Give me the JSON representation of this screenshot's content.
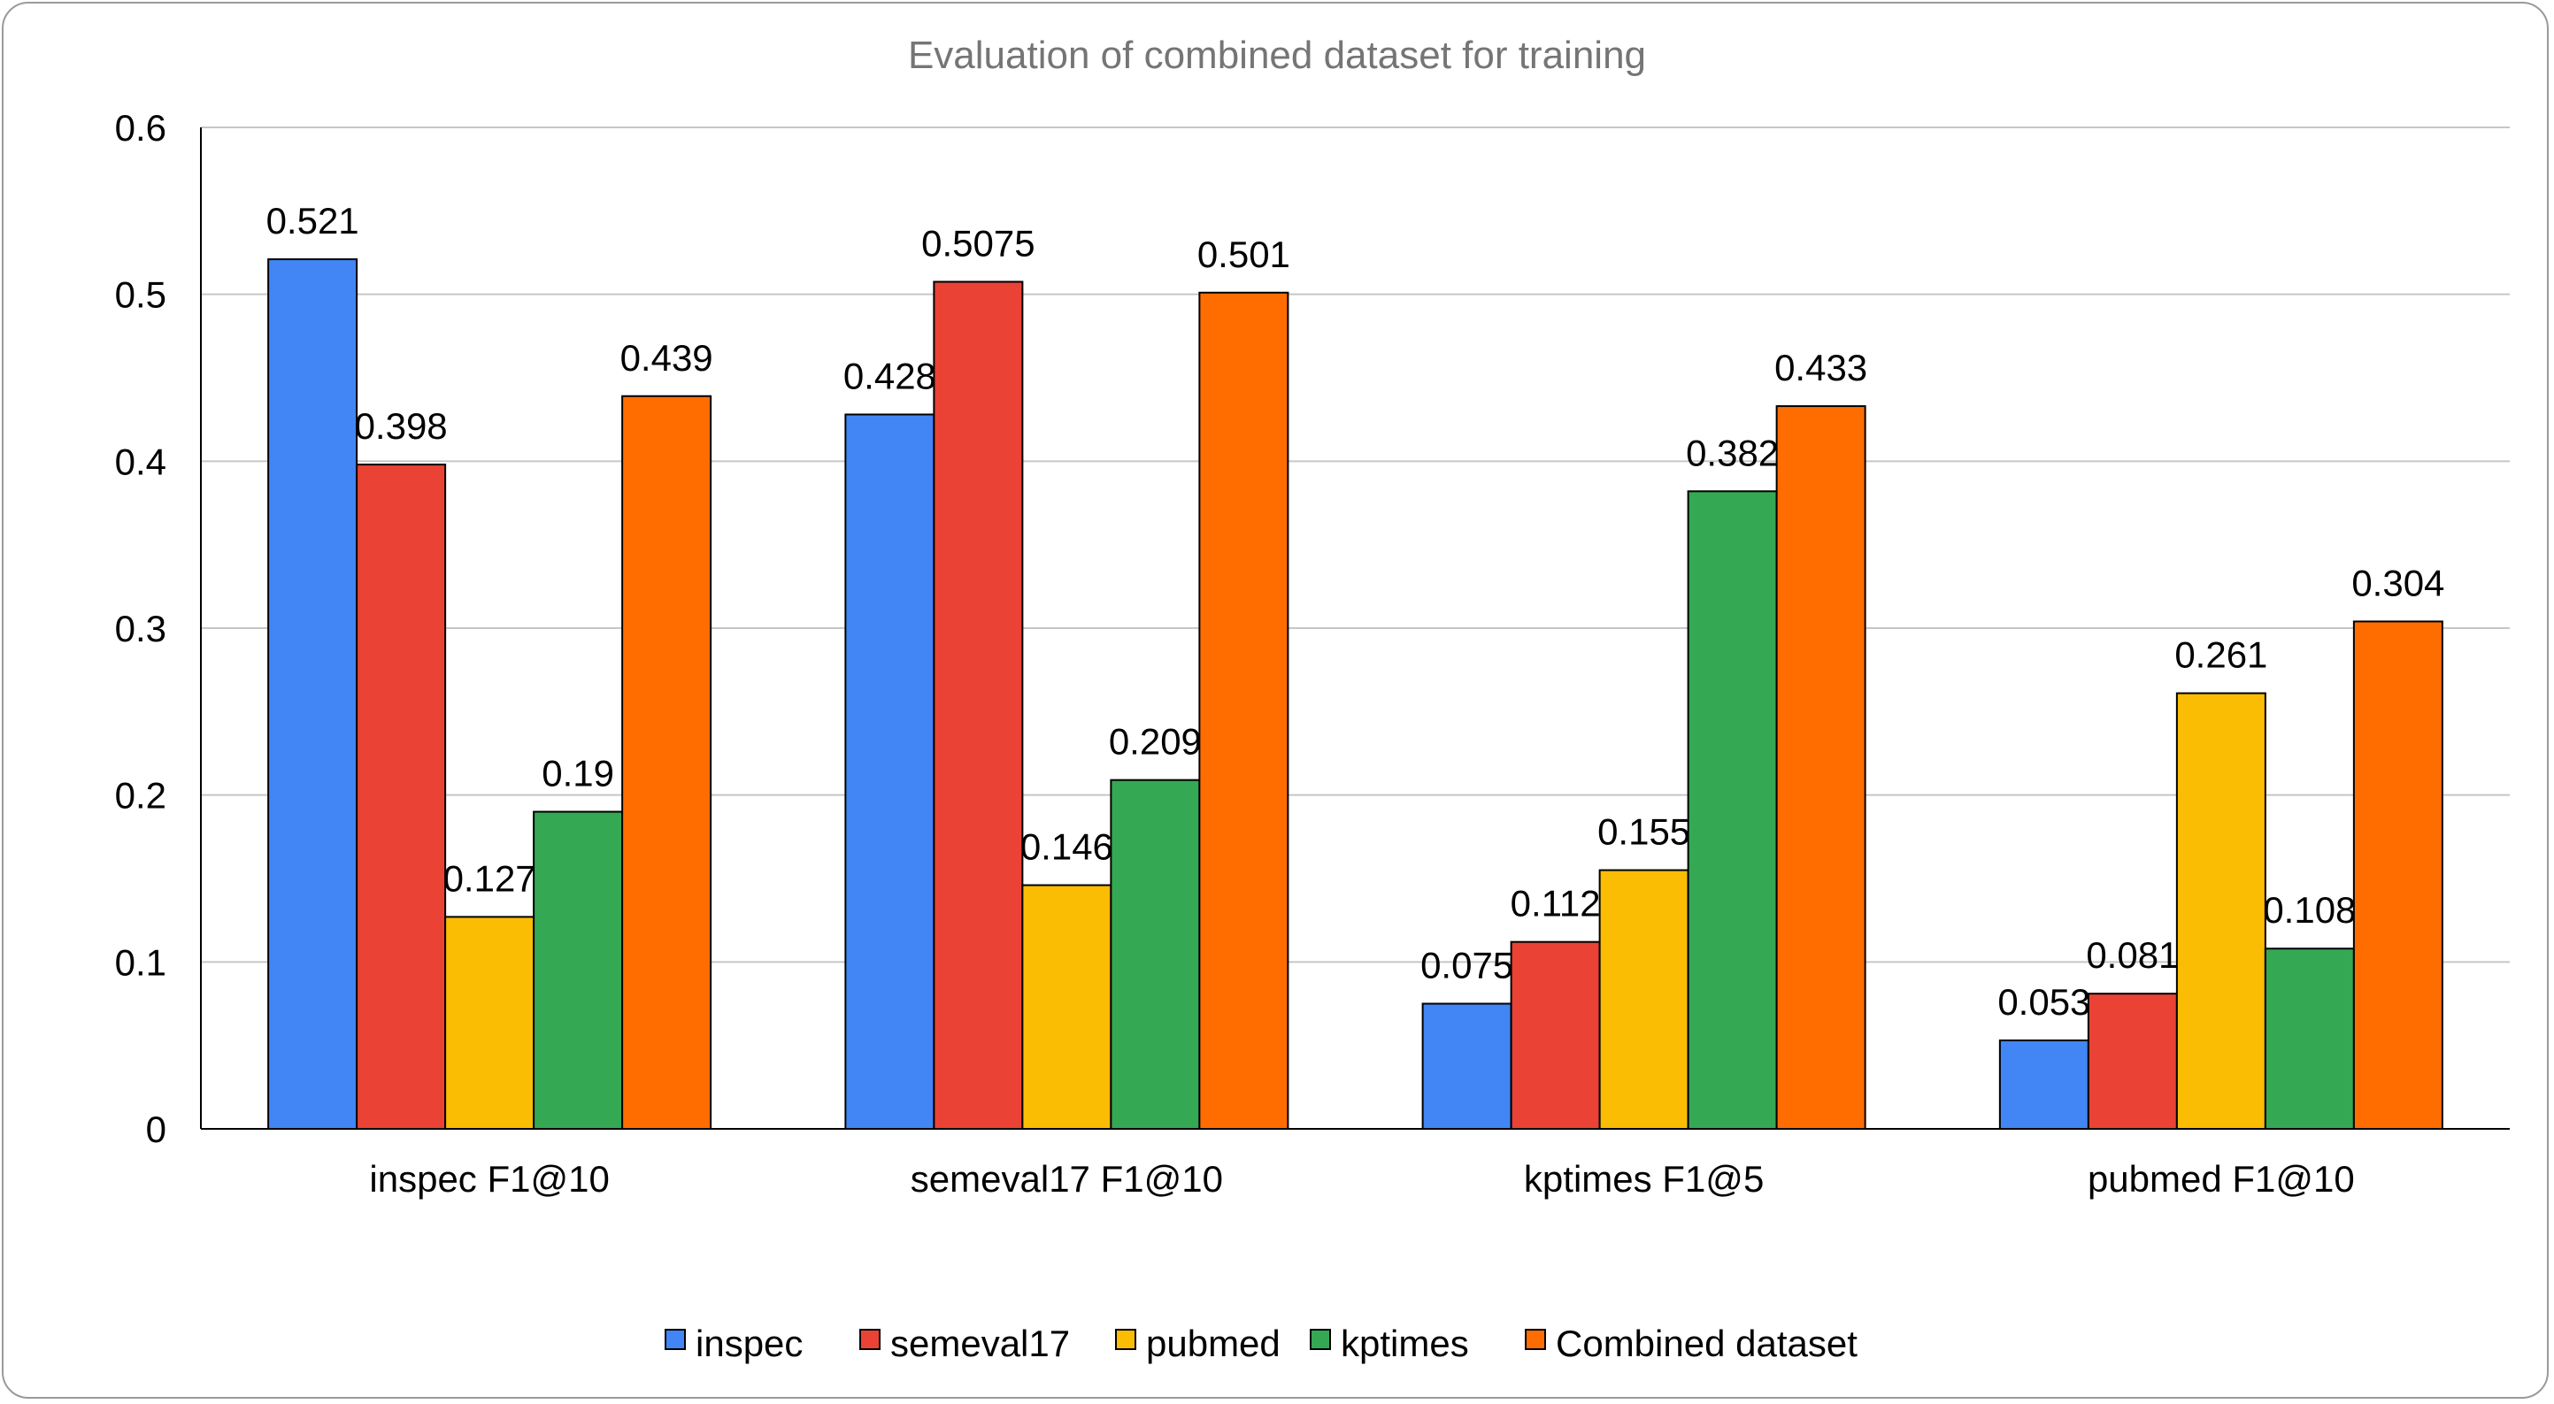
{
  "chart_data": {
    "type": "bar",
    "title": "Evaluation of combined dataset for training",
    "xlabel": "",
    "ylabel": "",
    "ylim": [
      0,
      0.6
    ],
    "yticks": [
      "0",
      "0.1",
      "0.2",
      "0.3",
      "0.4",
      "0.5",
      "0.6"
    ],
    "grid": true,
    "legend_position": "bottom",
    "categories": [
      "inspec F1@10",
      "semeval17 F1@10",
      "kptimes F1@5",
      "pubmed F1@10"
    ],
    "series": [
      {
        "name": "inspec",
        "color": "#4285F4",
        "values": [
          0.521,
          0.428,
          0.075,
          0.053
        ],
        "labels": [
          "0.521",
          "0.428",
          "0.075",
          "0.053"
        ]
      },
      {
        "name": "semeval17",
        "color": "#EA4335",
        "values": [
          0.398,
          0.5075,
          0.112,
          0.081
        ],
        "labels": [
          "0.398",
          "0.5075",
          "0.112",
          "0.081"
        ]
      },
      {
        "name": "pubmed",
        "color": "#FBBC04",
        "values": [
          0.127,
          0.146,
          0.155,
          0.261
        ],
        "labels": [
          "0.127",
          "0.146",
          "0.155",
          "0.261"
        ]
      },
      {
        "name": "kptimes",
        "color": "#34A853",
        "values": [
          0.19,
          0.209,
          0.382,
          0.108
        ],
        "labels": [
          "0.19",
          "0.209",
          "0.382",
          "0.108"
        ]
      },
      {
        "name": "Combined dataset",
        "color": "#FF6D01",
        "values": [
          0.439,
          0.501,
          0.433,
          0.304
        ],
        "labels": [
          "0.439",
          "0.501",
          "0.433",
          "0.304"
        ]
      }
    ]
  }
}
